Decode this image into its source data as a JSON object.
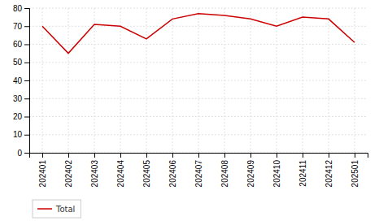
{
  "chart_data": {
    "type": "line",
    "categories": [
      "202401",
      "202402",
      "202403",
      "202404",
      "202405",
      "202406",
      "202407",
      "202408",
      "202409",
      "202410",
      "202411",
      "202412",
      "202501"
    ],
    "series": [
      {
        "name": "Total",
        "color": "#cc0000",
        "values": [
          70.0,
          55.0,
          71.0,
          70.0,
          63.0,
          74.0,
          77.0,
          76.0,
          74.0,
          70.0,
          75.0,
          74.0,
          61.0
        ]
      }
    ],
    "ylim": [
      0,
      80
    ],
    "yticks": [
      0,
      10,
      20,
      30,
      40,
      50,
      60,
      70,
      80
    ],
    "grid": true,
    "legend": "lower left"
  }
}
